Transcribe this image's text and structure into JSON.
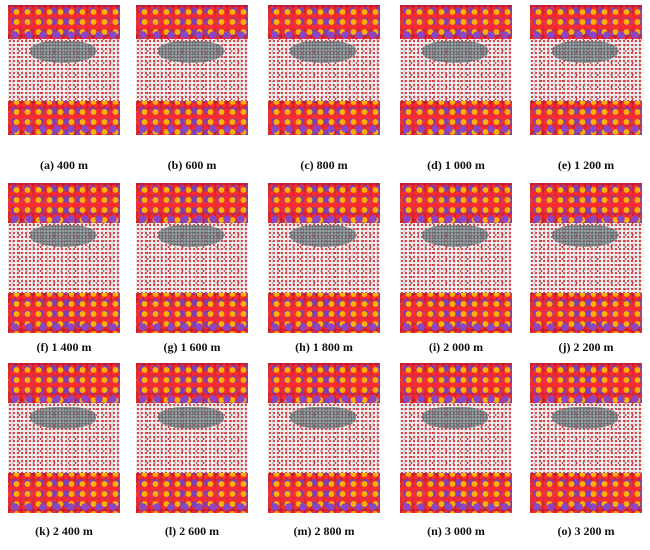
{
  "panels": [
    {
      "label": "(a) 400 m"
    },
    {
      "label": "(b) 600 m"
    },
    {
      "label": "(c) 800 m"
    },
    {
      "label": "(d) 1 000 m"
    },
    {
      "label": "(e) 1 200 m"
    },
    {
      "label": "(f) 1 400 m"
    },
    {
      "label": "(g) 1 600 m"
    },
    {
      "label": "(h) 1 800 m"
    },
    {
      "label": "(i) 2 000 m"
    },
    {
      "label": "(j) 2 200 m"
    },
    {
      "label": "(k) 2 400 m"
    },
    {
      "label": "(l) 2 600 m"
    },
    {
      "label": "(m) 2 800 m"
    },
    {
      "label": "(n) 3 000 m"
    },
    {
      "label": "(o) 3 200 m"
    }
  ],
  "colors": {
    "oxygen": "#c81e3c",
    "silicon": "#ffb000",
    "potassium": "#7d3fb3",
    "water_oxygen": "#d8343c",
    "hydrocarbon": "#6e7d82"
  }
}
